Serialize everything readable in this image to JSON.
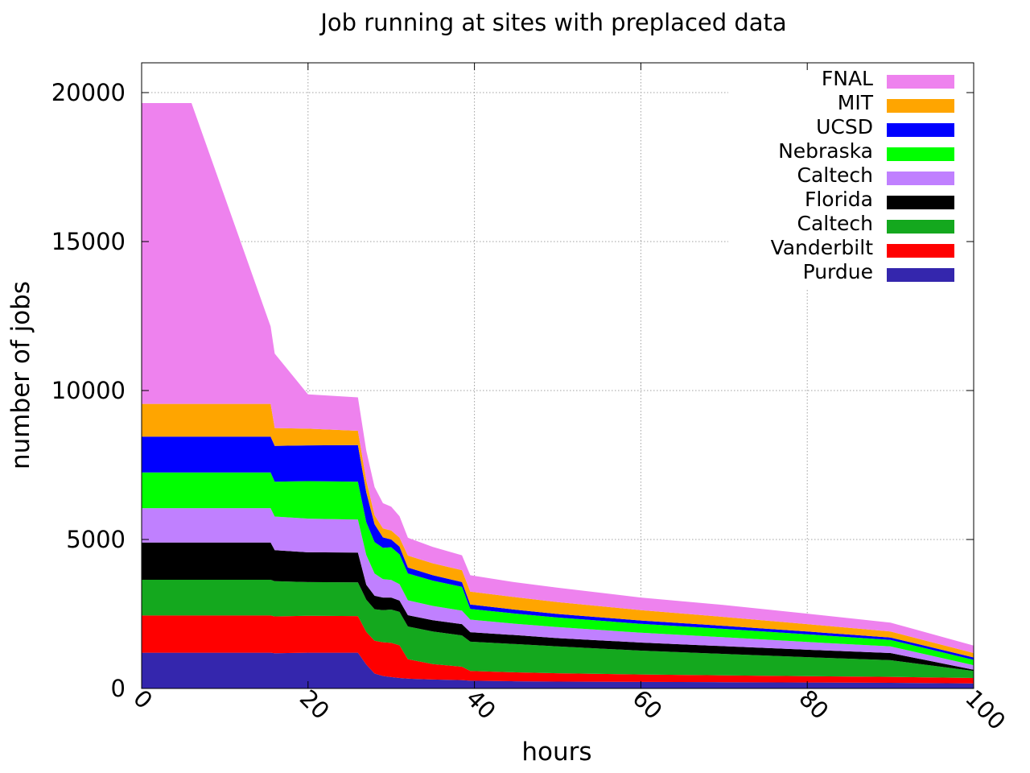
{
  "chart_data": {
    "type": "area",
    "stacked": true,
    "title": "Job running at sites with preplaced data",
    "xlabel": "hours",
    "ylabel": "number of jobs",
    "xlim": [
      0,
      100
    ],
    "ylim": [
      0,
      21000
    ],
    "xticks": [
      0,
      20,
      40,
      60,
      80,
      100
    ],
    "yticks": [
      0,
      5000,
      10000,
      15000,
      20000
    ],
    "xtick_rotation": 45,
    "grid": true,
    "legend_position": "top-right",
    "x": [
      0,
      6,
      15.5,
      16,
      20,
      26,
      27,
      28,
      29,
      30,
      31,
      32,
      35,
      38.5,
      39.5,
      45,
      50,
      60,
      70,
      80,
      90,
      100
    ],
    "series": [
      {
        "name": "Purdue",
        "color": "#3426ad",
        "values": [
          1200,
          1200,
          1200,
          1180,
          1200,
          1200,
          800,
          500,
          420,
          380,
          350,
          330,
          300,
          280,
          260,
          240,
          230,
          220,
          210,
          200,
          190,
          170
        ]
      },
      {
        "name": "Vanderbilt",
        "color": "#ff0000",
        "values": [
          1250,
          1250,
          1250,
          1240,
          1240,
          1230,
          1100,
          1100,
          1130,
          1150,
          1100,
          650,
          520,
          450,
          330,
          300,
          280,
          250,
          230,
          210,
          200,
          180
        ]
      },
      {
        "name": "Caltech",
        "color": "#14a81e",
        "values": [
          1200,
          1200,
          1200,
          1180,
          1130,
          1130,
          1080,
          1060,
          1080,
          1120,
          1120,
          1100,
          1090,
          1050,
          980,
          950,
          900,
          800,
          720,
          640,
          560,
          240
        ]
      },
      {
        "name": "Florida",
        "color": "#000000",
        "values": [
          1250,
          1250,
          1250,
          1040,
          1000,
          1000,
          500,
          450,
          420,
          400,
          380,
          380,
          380,
          380,
          320,
          300,
          280,
          270,
          260,
          250,
          240,
          40
        ]
      },
      {
        "name": "Caltech",
        "color": "#c080ff",
        "values": [
          1150,
          1150,
          1150,
          1130,
          1130,
          1110,
          1000,
          750,
          620,
          590,
          550,
          500,
          480,
          450,
          420,
          380,
          370,
          330,
          300,
          260,
          220,
          150
        ]
      },
      {
        "name": "Nebraska",
        "color": "#00ff00",
        "values": [
          1200,
          1200,
          1200,
          1170,
          1260,
          1270,
          1100,
          1050,
          1050,
          1100,
          1000,
          900,
          850,
          800,
          360,
          340,
          320,
          300,
          280,
          260,
          220,
          180
        ]
      },
      {
        "name": "UCSD",
        "color": "#0000ff",
        "values": [
          1200,
          1200,
          1200,
          1200,
          1200,
          1230,
          1000,
          600,
          350,
          260,
          260,
          200,
          180,
          160,
          150,
          130,
          120,
          110,
          100,
          90,
          80,
          80
        ]
      },
      {
        "name": "MIT",
        "color": "#ffa500",
        "values": [
          1100,
          1100,
          1100,
          600,
          560,
          480,
          400,
          300,
          300,
          300,
          300,
          400,
          400,
          400,
          430,
          420,
          400,
          350,
          300,
          250,
          200,
          150
        ]
      },
      {
        "name": "FNAL",
        "color": "#ee82ee",
        "values": [
          10100,
          10100,
          2600,
          2500,
          1150,
          1120,
          1000,
          950,
          850,
          800,
          720,
          600,
          550,
          500,
          550,
          500,
          480,
          420,
          400,
          350,
          300,
          250
        ]
      }
    ]
  }
}
